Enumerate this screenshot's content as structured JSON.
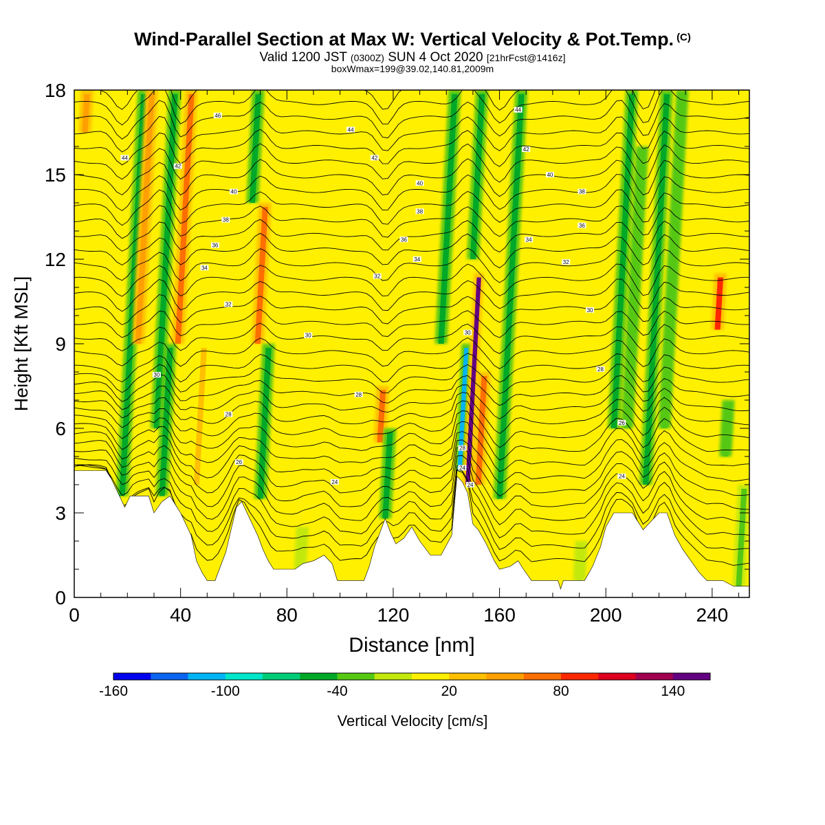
{
  "title": {
    "main": "Wind-Parallel Section at Max W: Vertical Velocity & Pot.Temp.",
    "copyright": "(C)",
    "valid_prefix": "Valid 1200 JST",
    "utc": "(0300Z)",
    "valid_date": "SUN 4 Oct 2020",
    "forecast": "[21hrFcst@1416z]",
    "box": "boxWmax=199@39.02,140.81,2009m"
  },
  "chart_data": {
    "type": "heatmap",
    "xlabel": "Distance [nm]",
    "ylabel": "Height [Kft MSL]",
    "xlim": [
      0,
      254
    ],
    "ylim": [
      0,
      18
    ],
    "x_ticks": [
      0,
      40,
      80,
      120,
      160,
      200,
      240
    ],
    "y_ticks": [
      0,
      3,
      6,
      9,
      12,
      15,
      18
    ],
    "colorbar": {
      "label": "Vertical Velocity [cm/s]",
      "tick_labels": [
        "-160",
        "-100",
        "-40",
        "20",
        "80",
        "140"
      ],
      "tick_values": [
        -160,
        -100,
        -40,
        20,
        80,
        140
      ],
      "bin_edges": [
        -160,
        -140,
        -120,
        -100,
        -80,
        -60,
        -40,
        -20,
        0,
        20,
        40,
        60,
        80,
        100,
        120,
        140,
        160
      ],
      "colors": [
        "#0000ee",
        "#0a64f0",
        "#00b4f5",
        "#00e6c8",
        "#00cc78",
        "#00a828",
        "#55c814",
        "#c3e80c",
        "#fff000",
        "#ffc000",
        "#ffa000",
        "#ff6e00",
        "#ff2800",
        "#dc001e",
        "#a00050",
        "#640082"
      ]
    },
    "background_color": "#fff000",
    "terrain_kft": [
      [
        0,
        4.5
      ],
      [
        12,
        4.5
      ],
      [
        14,
        4.2
      ],
      [
        17,
        3.6
      ],
      [
        19,
        3.2
      ],
      [
        21,
        3.6
      ],
      [
        28,
        3.6
      ],
      [
        30,
        3.0
      ],
      [
        33,
        3.4
      ],
      [
        36,
        3.6
      ],
      [
        40,
        3.0
      ],
      [
        44,
        2.2
      ],
      [
        46,
        1.3
      ],
      [
        48,
        0.9
      ],
      [
        50,
        0.6
      ],
      [
        53,
        0.6
      ],
      [
        55,
        1.1
      ],
      [
        57,
        1.6
      ],
      [
        59,
        2.4
      ],
      [
        61,
        3.2
      ],
      [
        63,
        3.4
      ],
      [
        65,
        3.0
      ],
      [
        67,
        2.6
      ],
      [
        69,
        2.2
      ],
      [
        71,
        1.7
      ],
      [
        73,
        1.3
      ],
      [
        75,
        1.0
      ],
      [
        83,
        1.0
      ],
      [
        86,
        1.2
      ],
      [
        90,
        1.3
      ],
      [
        94,
        1.5
      ],
      [
        97,
        1.2
      ],
      [
        99,
        0.6
      ],
      [
        109,
        0.6
      ],
      [
        111,
        1.1
      ],
      [
        113,
        1.8
      ],
      [
        115,
        2.3
      ],
      [
        117,
        2.8
      ],
      [
        119,
        2.3
      ],
      [
        121,
        1.9
      ],
      [
        124,
        2.1
      ],
      [
        127,
        2.5
      ],
      [
        130,
        2.0
      ],
      [
        134,
        1.5
      ],
      [
        138,
        1.5
      ],
      [
        142,
        2.2
      ],
      [
        144,
        4.3
      ],
      [
        146,
        4.1
      ],
      [
        148,
        3.7
      ],
      [
        150,
        2.6
      ],
      [
        152,
        2.4
      ],
      [
        155,
        1.9
      ],
      [
        158,
        1.3
      ],
      [
        160,
        1.0
      ],
      [
        164,
        1.1
      ],
      [
        167,
        1.3
      ],
      [
        169,
        1.0
      ],
      [
        172,
        0.6
      ],
      [
        182,
        0.6
      ],
      [
        183,
        0.3
      ],
      [
        184,
        0.6
      ],
      [
        192,
        0.6
      ],
      [
        195,
        1.1
      ],
      [
        198,
        1.8
      ],
      [
        200,
        2.5
      ],
      [
        203,
        3.0
      ],
      [
        210,
        3.0
      ],
      [
        212,
        2.7
      ],
      [
        214,
        2.4
      ],
      [
        217,
        2.7
      ],
      [
        220,
        3.0
      ],
      [
        223,
        3.0
      ],
      [
        226,
        2.2
      ],
      [
        229,
        1.7
      ],
      [
        232,
        1.3
      ],
      [
        235,
        0.9
      ],
      [
        238,
        0.6
      ],
      [
        244,
        0.6
      ],
      [
        248,
        0.4
      ],
      [
        254,
        0.4
      ]
    ],
    "vertical_velocity_features": [
      {
        "x": 4,
        "y0": 16.5,
        "y1": 18.0,
        "w": 40
      },
      {
        "x": 18,
        "y0": 3.6,
        "y1": 18.0,
        "w": -45
      },
      {
        "x": 24,
        "y0": 9.0,
        "y1": 18.0,
        "w": 45
      },
      {
        "x": 31,
        "y0": 6.0,
        "y1": 18.0,
        "w": -45
      },
      {
        "x": 39,
        "y0": 9.0,
        "y1": 18.0,
        "w": 70
      },
      {
        "x": 33,
        "y0": 3.6,
        "y1": 9.0,
        "w": -55
      },
      {
        "x": 46,
        "y0": 4.0,
        "y1": 9.0,
        "w": 35
      },
      {
        "x": 67,
        "y0": 14.0,
        "y1": 18.0,
        "w": -55
      },
      {
        "x": 69,
        "y0": 9.0,
        "y1": 14.0,
        "w": 60
      },
      {
        "x": 70,
        "y0": 3.5,
        "y1": 9.0,
        "w": -45
      },
      {
        "x": 115,
        "y0": 5.5,
        "y1": 7.5,
        "w": 60
      },
      {
        "x": 117,
        "y0": 2.8,
        "y1": 6.0,
        "w": -50
      },
      {
        "x": 138,
        "y0": 9.0,
        "y1": 18.0,
        "w": -45
      },
      {
        "x": 145,
        "y0": 4.5,
        "y1": 9.0,
        "w": -110
      },
      {
        "x": 148,
        "y0": 4.0,
        "y1": 11.5,
        "w": 150
      },
      {
        "x": 150,
        "y0": 12.0,
        "y1": 18.0,
        "w": -55
      },
      {
        "x": 152,
        "y0": 4.0,
        "y1": 8.0,
        "w": 60
      },
      {
        "x": 160,
        "y0": 3.5,
        "y1": 18.0,
        "w": -50
      },
      {
        "x": 203,
        "y0": 6.0,
        "y1": 18.0,
        "w": -50
      },
      {
        "x": 208,
        "y0": 6.0,
        "y1": 16.0,
        "w": -40
      },
      {
        "x": 215,
        "y0": 4.0,
        "y1": 18.0,
        "w": -50
      },
      {
        "x": 222,
        "y0": 6.0,
        "y1": 18.0,
        "w": -40
      },
      {
        "x": 242,
        "y0": 9.5,
        "y1": 11.5,
        "w": 90
      },
      {
        "x": 245,
        "y0": 5.0,
        "y1": 7.0,
        "w": -40
      },
      {
        "x": 190,
        "y0": 0.6,
        "y1": 2.0,
        "w": -20
      },
      {
        "x": 85,
        "y0": 1.0,
        "y1": 2.5,
        "w": -20
      },
      {
        "x": 250,
        "y0": 0.4,
        "y1": 4.0,
        "w": -30
      }
    ],
    "pot_temp_contour_labels": [
      {
        "text": "46",
        "x": 54,
        "y": 17.1
      },
      {
        "text": "44",
        "x": 104,
        "y": 16.6
      },
      {
        "text": "44",
        "x": 167,
        "y": 17.3
      },
      {
        "text": "44",
        "x": 19,
        "y": 15.6
      },
      {
        "text": "42",
        "x": 39,
        "y": 15.3
      },
      {
        "text": "42",
        "x": 113,
        "y": 15.6
      },
      {
        "text": "42",
        "x": 170,
        "y": 15.9
      },
      {
        "text": "40",
        "x": 60,
        "y": 14.4
      },
      {
        "text": "40",
        "x": 130,
        "y": 14.7
      },
      {
        "text": "40",
        "x": 179,
        "y": 15.0
      },
      {
        "text": "38",
        "x": 57,
        "y": 13.4
      },
      {
        "text": "38",
        "x": 130,
        "y": 13.7
      },
      {
        "text": "38",
        "x": 191,
        "y": 14.4
      },
      {
        "text": "36",
        "x": 53,
        "y": 12.5
      },
      {
        "text": "36",
        "x": 124,
        "y": 12.7
      },
      {
        "text": "36",
        "x": 191,
        "y": 13.2
      },
      {
        "text": "34",
        "x": 49,
        "y": 11.7
      },
      {
        "text": "34",
        "x": 129,
        "y": 12.0
      },
      {
        "text": "34",
        "x": 171,
        "y": 12.7
      },
      {
        "text": "32",
        "x": 58,
        "y": 10.4
      },
      {
        "text": "32",
        "x": 114,
        "y": 11.4
      },
      {
        "text": "32",
        "x": 185,
        "y": 11.9
      },
      {
        "text": "30",
        "x": 88,
        "y": 9.3
      },
      {
        "text": "30",
        "x": 148,
        "y": 9.4
      },
      {
        "text": "30",
        "x": 194,
        "y": 10.2
      },
      {
        "text": "30",
        "x": 31,
        "y": 7.9
      },
      {
        "text": "28",
        "x": 107,
        "y": 7.2
      },
      {
        "text": "28",
        "x": 198,
        "y": 8.1
      },
      {
        "text": "28",
        "x": 58,
        "y": 6.5
      },
      {
        "text": "28",
        "x": 146,
        "y": 5.3
      },
      {
        "text": "26",
        "x": 206,
        "y": 6.2
      },
      {
        "text": "26",
        "x": 62,
        "y": 4.8
      },
      {
        "text": "24",
        "x": 98,
        "y": 4.1
      },
      {
        "text": "24",
        "x": 146,
        "y": 4.6
      },
      {
        "text": "24",
        "x": 149,
        "y": 4.0
      },
      {
        "text": "24",
        "x": 206,
        "y": 4.3
      }
    ]
  }
}
